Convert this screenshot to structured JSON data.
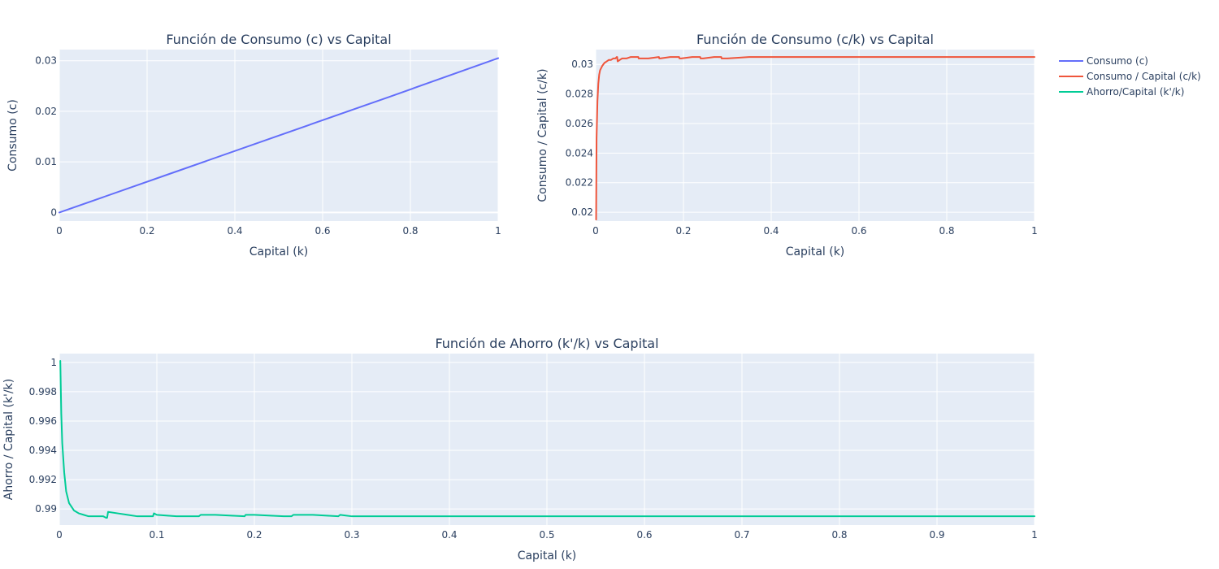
{
  "chart_data": [
    {
      "type": "line",
      "title": "Función de Consumo (c) vs Capital",
      "xlabel": "Capital (k)",
      "ylabel": "Consumo (c)",
      "xlim": [
        0,
        1
      ],
      "ylim": [
        -0.0017,
        0.0322
      ],
      "xticks": [
        "0",
        "0.2",
        "0.4",
        "0.6",
        "0.8",
        "1"
      ],
      "yticks": [
        "0",
        "0.01",
        "0.02",
        "0.03"
      ],
      "grid": true,
      "series": [
        {
          "name": "Consumo (c)",
          "color": "#636efa",
          "x": [
            0,
            0.25,
            0.5,
            0.75,
            1.0
          ],
          "y": [
            0,
            0.0076,
            0.0152,
            0.0228,
            0.0305
          ]
        }
      ]
    },
    {
      "type": "line",
      "title": "Función de Consumo (c/k) vs Capital",
      "xlabel": "Capital (k)",
      "ylabel": "Consumo / Capital (c/k)",
      "xlim": [
        0,
        1
      ],
      "ylim": [
        0.0194,
        0.031
      ],
      "xticks": [
        "0",
        "0.2",
        "0.4",
        "0.6",
        "0.8",
        "1"
      ],
      "yticks": [
        "0.02",
        "0.022",
        "0.024",
        "0.026",
        "0.028",
        "0.03"
      ],
      "grid": true,
      "series": [
        {
          "name": "Consumo / Capital (c/k)",
          "color": "#ef553b",
          "x": [
            0.001,
            0.002,
            0.004,
            0.006,
            0.008,
            0.01,
            0.015,
            0.02,
            0.025,
            0.03,
            0.035,
            0.04,
            0.045,
            0.048,
            0.049,
            0.05,
            0.055,
            0.06,
            0.07,
            0.08,
            0.09,
            0.097,
            0.098,
            0.1,
            0.12,
            0.144,
            0.145,
            0.147,
            0.17,
            0.19,
            0.191,
            0.195,
            0.22,
            0.238,
            0.239,
            0.245,
            0.27,
            0.286,
            0.287,
            0.3,
            0.35,
            0.4,
            0.5,
            0.6,
            0.7,
            0.8,
            0.9,
            1.0
          ],
          "y": [
            0.0195,
            0.025,
            0.0275,
            0.0287,
            0.0293,
            0.0296,
            0.0299,
            0.0301,
            0.0302,
            0.0303,
            0.0303,
            0.0304,
            0.0304,
            0.0305,
            0.0305,
            0.0302,
            0.0303,
            0.0304,
            0.0304,
            0.0305,
            0.0305,
            0.0305,
            0.0304,
            0.0304,
            0.0304,
            0.0305,
            0.0304,
            0.0304,
            0.0305,
            0.0305,
            0.0304,
            0.0304,
            0.0305,
            0.0305,
            0.0304,
            0.0304,
            0.0305,
            0.0305,
            0.0304,
            0.0304,
            0.0305,
            0.0305,
            0.0305,
            0.0305,
            0.0305,
            0.0305,
            0.0305,
            0.0305
          ]
        }
      ]
    },
    {
      "type": "line",
      "title": "Función de Ahorro (k'/k) vs Capital",
      "xlabel": "Capital (k)",
      "ylabel": "Ahorro / Capital (k'/k)",
      "xlim": [
        0,
        1
      ],
      "ylim": [
        0.9889,
        1.0006
      ],
      "xticks": [
        "0",
        "0.1",
        "0.2",
        "0.3",
        "0.4",
        "0.5",
        "0.6",
        "0.7",
        "0.8",
        "0.9",
        "1"
      ],
      "yticks": [
        "0.99",
        "0.992",
        "0.994",
        "0.996",
        "0.998",
        "1"
      ],
      "grid": true,
      "series": [
        {
          "name": "Ahorro/Capital (k'/k)",
          "color": "#00cc96",
          "x": [
            0.001,
            0.002,
            0.003,
            0.005,
            0.007,
            0.01,
            0.015,
            0.02,
            0.025,
            0.03,
            0.035,
            0.04,
            0.045,
            0.048,
            0.049,
            0.05,
            0.06,
            0.07,
            0.08,
            0.09,
            0.096,
            0.097,
            0.1,
            0.12,
            0.14,
            0.143,
            0.145,
            0.16,
            0.19,
            0.191,
            0.2,
            0.23,
            0.238,
            0.24,
            0.26,
            0.286,
            0.288,
            0.3,
            0.35,
            0.4,
            0.5,
            0.6,
            0.7,
            0.8,
            0.9,
            1.0
          ],
          "y": [
            1.0001,
            0.9965,
            0.9945,
            0.9925,
            0.9912,
            0.9904,
            0.9899,
            0.9897,
            0.9896,
            0.9895,
            0.9895,
            0.9895,
            0.9895,
            0.9894,
            0.9894,
            0.9898,
            0.9897,
            0.9896,
            0.9895,
            0.9895,
            0.9895,
            0.9897,
            0.9896,
            0.9895,
            0.9895,
            0.9895,
            0.9896,
            0.9896,
            0.9895,
            0.9896,
            0.9896,
            0.9895,
            0.9895,
            0.9896,
            0.9896,
            0.9895,
            0.9896,
            0.9895,
            0.9895,
            0.9895,
            0.9895,
            0.9895,
            0.9895,
            0.9895,
            0.9895,
            0.9895
          ]
        }
      ]
    }
  ],
  "legend": {
    "placement": "top-right",
    "items": [
      {
        "label": "Consumo (c)",
        "color": "#636efa"
      },
      {
        "label": "Consumo / Capital (c/k)",
        "color": "#ef553b"
      },
      {
        "label": "Ahorro/Capital (k'/k)",
        "color": "#00cc96"
      }
    ]
  }
}
